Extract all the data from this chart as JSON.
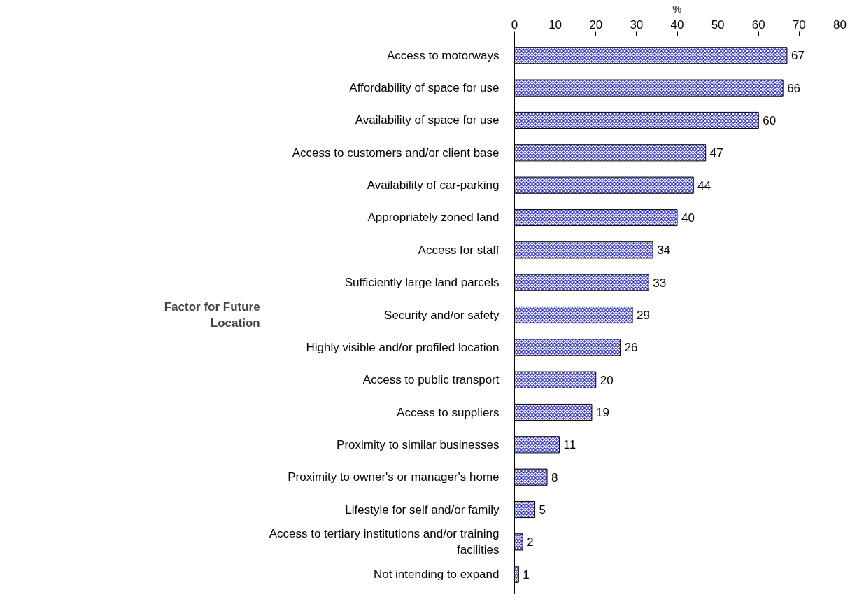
{
  "chart_data": {
    "type": "bar",
    "orientation": "horizontal",
    "xlabel": "%",
    "ylabel": "Factor for Future Location",
    "categories": [
      "Access to motorways",
      "Affordability of space for use",
      "Availability of space for use",
      "Access to customers and/or client base",
      "Availability of car-parking",
      "Appropriately zoned land",
      "Access for staff",
      "Sufficiently large land parcels",
      "Security and/or safety",
      "Highly visible and/or profiled location",
      "Access to public transport",
      "Access to suppliers",
      "Proximity to similar businesses",
      "Proximity to owner's or manager's home",
      "Lifestyle for self and/or family",
      "Access to tertiary institutions and/or training facilities",
      "Not intending to expand"
    ],
    "values": [
      67,
      66,
      60,
      47,
      44,
      40,
      34,
      33,
      29,
      26,
      20,
      19,
      11,
      8,
      5,
      2,
      1
    ],
    "color": "#3333cc",
    "xlim": [
      0,
      80
    ],
    "xticks": [
      0,
      10,
      20,
      30,
      40,
      50,
      60,
      70,
      80
    ],
    "data_labels": true,
    "grid": false
  }
}
